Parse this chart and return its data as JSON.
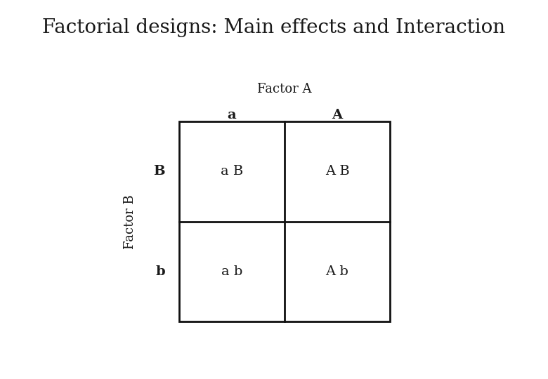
{
  "title": "Factorial designs: Main effects and Interaction",
  "title_bg_color": "#1DC899",
  "title_text_color": "#1a1a1a",
  "title_fontsize": 20,
  "factor_a_label": "Factor A",
  "factor_b_label": "Factor B",
  "col_labels": [
    "a",
    "A"
  ],
  "row_labels": [
    "B",
    "b"
  ],
  "cell_labels": [
    [
      "a B",
      "A B"
    ],
    [
      "a b",
      "A b"
    ]
  ],
  "background_color": "#ffffff",
  "cell_text_color": "#1a1a1a",
  "grid_color": "#111111",
  "label_fontsize": 14,
  "cell_fontsize": 14,
  "factor_label_fontsize": 13
}
